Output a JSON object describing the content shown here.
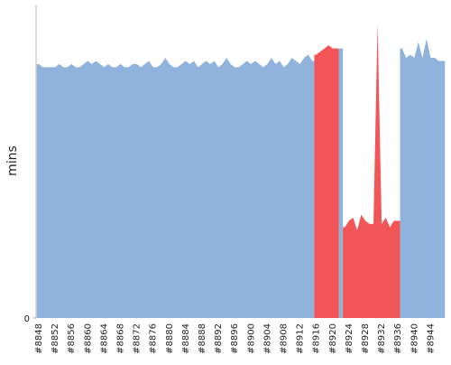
{
  "chart_data": {
    "type": "area",
    "y_label": "mins",
    "categories": [
      "#8848",
      null,
      null,
      null,
      "#8852",
      null,
      null,
      null,
      "#8856",
      null,
      null,
      null,
      "#8860",
      null,
      null,
      null,
      "#8864",
      null,
      null,
      null,
      "#8868",
      null,
      null,
      null,
      "#8872",
      null,
      null,
      null,
      "#8876",
      null,
      null,
      null,
      "#8880",
      null,
      null,
      null,
      "#8884",
      null,
      null,
      null,
      "#8888",
      null,
      null,
      null,
      "#8892",
      null,
      null,
      null,
      "#8896",
      null,
      null,
      null,
      "#8900",
      null,
      null,
      null,
      "#8904",
      null,
      null,
      null,
      "#8908",
      null,
      null,
      null,
      "#8912",
      null,
      null,
      null,
      "#8916",
      null,
      null,
      null,
      "#8920",
      null,
      null,
      null,
      "#8924",
      null,
      null,
      null,
      "#8928",
      null,
      null,
      null,
      "#8932",
      null,
      null,
      null,
      "#8936",
      null,
      null,
      null,
      "#8940",
      null,
      null,
      null,
      "#8944",
      null,
      null,
      null
    ],
    "series": [
      {
        "color": "#8fb3dc",
        "values": [
          81,
          80,
          80,
          80,
          80,
          81,
          80,
          80,
          81,
          80,
          80,
          81,
          82,
          81,
          82,
          81,
          80,
          81,
          80,
          80,
          81,
          80,
          80,
          81,
          81,
          80,
          81,
          82,
          80,
          80,
          81,
          83,
          81,
          80,
          80,
          81,
          82,
          81,
          82,
          80,
          81,
          82,
          81,
          82,
          80,
          81,
          83,
          81,
          80,
          80,
          81,
          82,
          81,
          82,
          81,
          80,
          81,
          83,
          81,
          82,
          80,
          81,
          83,
          82,
          81,
          83,
          84,
          82,
          null,
          null,
          null,
          null,
          null,
          null,
          86,
          null,
          null,
          null,
          null,
          null,
          null,
          null,
          null,
          null,
          null,
          null,
          null,
          null,
          null,
          86,
          83,
          84,
          83,
          88,
          83,
          89,
          83,
          83,
          82,
          82
        ]
      },
      {
        "color": "#f25555",
        "values": [
          null,
          null,
          null,
          null,
          null,
          null,
          null,
          null,
          null,
          null,
          null,
          null,
          null,
          null,
          null,
          null,
          null,
          null,
          null,
          null,
          null,
          null,
          null,
          null,
          null,
          null,
          null,
          null,
          null,
          null,
          null,
          null,
          null,
          null,
          null,
          null,
          null,
          null,
          null,
          null,
          null,
          null,
          null,
          null,
          null,
          null,
          null,
          null,
          null,
          null,
          null,
          null,
          null,
          null,
          null,
          null,
          null,
          null,
          null,
          null,
          null,
          null,
          null,
          null,
          null,
          null,
          null,
          null,
          84,
          85,
          86,
          87,
          86,
          86,
          null,
          29,
          31,
          32,
          28,
          33,
          31,
          30,
          30,
          94,
          30,
          32,
          29,
          31,
          31,
          null,
          null,
          null,
          null,
          null,
          null,
          null,
          null,
          null,
          null,
          null
        ]
      }
    ],
    "ylim": [
      0,
      100
    ],
    "yticks": [
      0
    ]
  }
}
